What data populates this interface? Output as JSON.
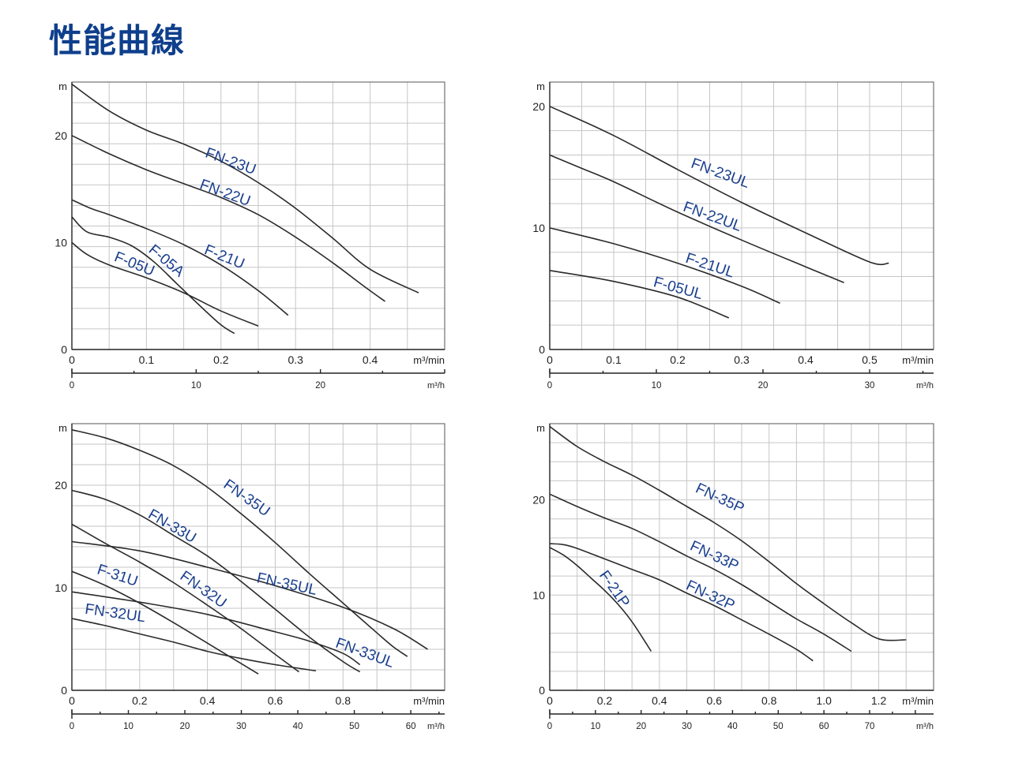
{
  "page": {
    "title": "性能曲線"
  },
  "chart_data": [
    {
      "type": "line",
      "ylabel": "m",
      "xlabel": "m³/min",
      "x2label": "m³/h",
      "xlim": [
        0,
        0.5
      ],
      "ylim": [
        0,
        25
      ],
      "xticks": [
        "0",
        "0.1",
        "0.2",
        "0.3",
        "0.4"
      ],
      "xtick_values": [
        0,
        0.1,
        0.2,
        0.3,
        0.4
      ],
      "yticks": [
        "0",
        "10",
        "20"
      ],
      "ytick_values": [
        0,
        10,
        20
      ],
      "x2ticks": [
        "0",
        "10",
        "20"
      ],
      "x2tick_values": [
        0,
        10,
        20
      ],
      "x2lim": [
        0,
        30
      ],
      "grid": true,
      "series": [
        {
          "name": "FN-23U",
          "x": [
            0,
            0.05,
            0.1,
            0.15,
            0.2,
            0.25,
            0.3,
            0.35,
            0.4,
            0.465
          ],
          "y": [
            24.8,
            22.3,
            20.5,
            19.2,
            17.6,
            15.6,
            13.2,
            10.4,
            7.5,
            5.3
          ]
        },
        {
          "name": "FN-22U",
          "x": [
            0,
            0.05,
            0.1,
            0.15,
            0.2,
            0.25,
            0.3,
            0.35,
            0.39,
            0.42
          ],
          "y": [
            20,
            18.3,
            16.8,
            15.5,
            14.2,
            12.6,
            10.5,
            8.1,
            6,
            4.5
          ]
        },
        {
          "name": "F-21U",
          "x": [
            0,
            0.025,
            0.05,
            0.1,
            0.15,
            0.2,
            0.25,
            0.29
          ],
          "y": [
            14,
            13.2,
            12.6,
            11.3,
            9.8,
            7.9,
            5.5,
            3.2
          ]
        },
        {
          "name": "F-05A",
          "x": [
            0,
            0.02,
            0.05,
            0.08,
            0.11,
            0.14,
            0.17,
            0.2,
            0.218
          ],
          "y": [
            12.4,
            11,
            10.5,
            9.7,
            8.2,
            6.2,
            4.2,
            2.3,
            1.5
          ]
        },
        {
          "name": "F-05U",
          "x": [
            0,
            0.02,
            0.05,
            0.1,
            0.15,
            0.2,
            0.25
          ],
          "y": [
            10,
            8.9,
            7.9,
            6.7,
            5.3,
            3.6,
            2.2
          ]
        }
      ]
    },
    {
      "type": "line",
      "ylabel": "m",
      "xlabel": "m³/min",
      "x2label": "m³/h",
      "xlim": [
        0,
        0.6
      ],
      "ylim": [
        0,
        22
      ],
      "xticks": [
        "0",
        "0.1",
        "0.2",
        "0.3",
        "0.4",
        "0.5"
      ],
      "xtick_values": [
        0,
        0.1,
        0.2,
        0.3,
        0.4,
        0.5
      ],
      "yticks": [
        "0",
        "10",
        "20"
      ],
      "ytick_values": [
        0,
        10,
        20
      ],
      "x2ticks": [
        "0",
        "10",
        "20",
        "30"
      ],
      "x2tick_values": [
        0,
        10,
        20,
        30
      ],
      "x2lim": [
        0,
        36
      ],
      "grid": true,
      "series": [
        {
          "name": "FN-23UL",
          "x": [
            0,
            0.1,
            0.2,
            0.3,
            0.4,
            0.5,
            0.53
          ],
          "y": [
            20,
            17.6,
            14.8,
            12.1,
            9.6,
            7.2,
            7.1
          ]
        },
        {
          "name": "FN-22UL",
          "x": [
            0,
            0.05,
            0.1,
            0.2,
            0.3,
            0.4,
            0.46
          ],
          "y": [
            16,
            14.9,
            13.8,
            11.3,
            9,
            6.8,
            5.5
          ]
        },
        {
          "name": "F-21UL",
          "x": [
            0,
            0.1,
            0.2,
            0.3,
            0.36
          ],
          "y": [
            10,
            8.7,
            7.1,
            5.2,
            3.8
          ]
        },
        {
          "name": "F-05UL",
          "x": [
            0,
            0.1,
            0.2,
            0.28
          ],
          "y": [
            6.5,
            5.6,
            4.3,
            2.6
          ]
        }
      ]
    },
    {
      "type": "line",
      "ylabel": "m",
      "xlabel": "m³/min",
      "x2label": "m³/h",
      "xlim": [
        0,
        1.1
      ],
      "ylim": [
        0,
        26
      ],
      "xticks": [
        "0",
        "0.2",
        "0.4",
        "0.6",
        "0.8"
      ],
      "xtick_values": [
        0,
        0.2,
        0.4,
        0.6,
        0.8
      ],
      "yticks": [
        "0",
        "10",
        "20"
      ],
      "ytick_values": [
        0,
        10,
        20
      ],
      "x2ticks": [
        "0",
        "10",
        "20",
        "30",
        "40",
        "50",
        "60"
      ],
      "x2tick_values": [
        0,
        10,
        20,
        30,
        40,
        50,
        60
      ],
      "x2lim": [
        0,
        66
      ],
      "grid": true,
      "series": [
        {
          "name": "FN-35U",
          "x": [
            0,
            0.1,
            0.2,
            0.3,
            0.4,
            0.5,
            0.6,
            0.7,
            0.8,
            0.9,
            0.95,
            0.99
          ],
          "y": [
            25.4,
            24.6,
            23.4,
            21.9,
            19.8,
            17.2,
            14.4,
            11.4,
            8.5,
            5.6,
            4.2,
            3.3
          ]
        },
        {
          "name": "FN-33U",
          "x": [
            0,
            0.1,
            0.2,
            0.3,
            0.4,
            0.5,
            0.6,
            0.7,
            0.8,
            0.85
          ],
          "y": [
            19.5,
            18.6,
            17.1,
            15.1,
            13.1,
            10.6,
            7.9,
            5.2,
            2.8,
            1.8
          ]
        },
        {
          "name": "FN-35UL",
          "x": [
            0,
            0.2,
            0.4,
            0.6,
            0.8,
            0.95,
            1.05
          ],
          "y": [
            14.5,
            13.6,
            12,
            10.2,
            8.1,
            6,
            4
          ]
        },
        {
          "name": "FN-32U",
          "x": [
            0,
            0.1,
            0.2,
            0.3,
            0.4,
            0.5,
            0.6,
            0.67
          ],
          "y": [
            16.2,
            14.3,
            12.5,
            10.5,
            8.3,
            6,
            3.5,
            1.8
          ]
        },
        {
          "name": "F-31U",
          "x": [
            0,
            0.1,
            0.2,
            0.3,
            0.4,
            0.5,
            0.55
          ],
          "y": [
            11.6,
            10.2,
            8.5,
            6.6,
            4.6,
            2.6,
            1.6
          ]
        },
        {
          "name": "FN-33UL",
          "x": [
            0,
            0.2,
            0.4,
            0.6,
            0.7,
            0.8,
            0.85
          ],
          "y": [
            9.6,
            8.6,
            7.4,
            5.7,
            4.8,
            3.6,
            2.5
          ]
        },
        {
          "name": "FN-32UL",
          "x": [
            0,
            0.1,
            0.2,
            0.3,
            0.4,
            0.5,
            0.6,
            0.72
          ],
          "y": [
            7,
            6.3,
            5.5,
            4.7,
            3.8,
            3.1,
            2.5,
            1.9
          ]
        }
      ]
    },
    {
      "type": "line",
      "ylabel": "m",
      "xlabel": "m³/min",
      "x2label": "m³/h",
      "xlim": [
        0,
        1.4
      ],
      "ylim": [
        0,
        28
      ],
      "xticks": [
        "0",
        "0.2",
        "0.4",
        "0.6",
        "0.8",
        "1.0",
        "1.2"
      ],
      "xtick_values": [
        0,
        0.2,
        0.4,
        0.6,
        0.8,
        1.0,
        1.2
      ],
      "yticks": [
        "0",
        "10",
        "20"
      ],
      "ytick_values": [
        0,
        10,
        20
      ],
      "x2ticks": [
        "0",
        "10",
        "20",
        "30",
        "40",
        "50",
        "60",
        "70"
      ],
      "x2tick_values": [
        0,
        10,
        20,
        30,
        40,
        50,
        60,
        70
      ],
      "x2lim": [
        0,
        84
      ],
      "grid": true,
      "series": [
        {
          "name": "FN-35P",
          "x": [
            0,
            0.1,
            0.2,
            0.3,
            0.4,
            0.5,
            0.6,
            0.7,
            0.8,
            0.9,
            1.0,
            1.1,
            1.2,
            1.3
          ],
          "y": [
            27.7,
            25.6,
            24,
            22.6,
            21,
            19.3,
            17.6,
            15.7,
            13.5,
            11.2,
            9.1,
            7.1,
            5.4,
            5.3
          ]
        },
        {
          "name": "FN-33P",
          "x": [
            0,
            0.1,
            0.2,
            0.3,
            0.4,
            0.5,
            0.6,
            0.7,
            0.8,
            0.9,
            1.0,
            1.1
          ],
          "y": [
            20.6,
            19.3,
            18.1,
            17,
            15.6,
            14.1,
            12.7,
            11.1,
            9.3,
            7.5,
            5.9,
            4.1
          ]
        },
        {
          "name": "FN-32P",
          "x": [
            0,
            0.05,
            0.1,
            0.2,
            0.3,
            0.4,
            0.5,
            0.6,
            0.7,
            0.8,
            0.9,
            0.96
          ],
          "y": [
            15.4,
            15.3,
            14.9,
            13.8,
            12.7,
            11.6,
            10.2,
            8.9,
            7.4,
            5.9,
            4.3,
            3.1
          ]
        },
        {
          "name": "F-21P",
          "x": [
            0,
            0.05,
            0.1,
            0.15,
            0.2,
            0.25,
            0.3,
            0.35,
            0.37
          ],
          "y": [
            15,
            14.2,
            13.1,
            11.8,
            10.5,
            9,
            7.2,
            5,
            4.1
          ]
        }
      ]
    }
  ]
}
